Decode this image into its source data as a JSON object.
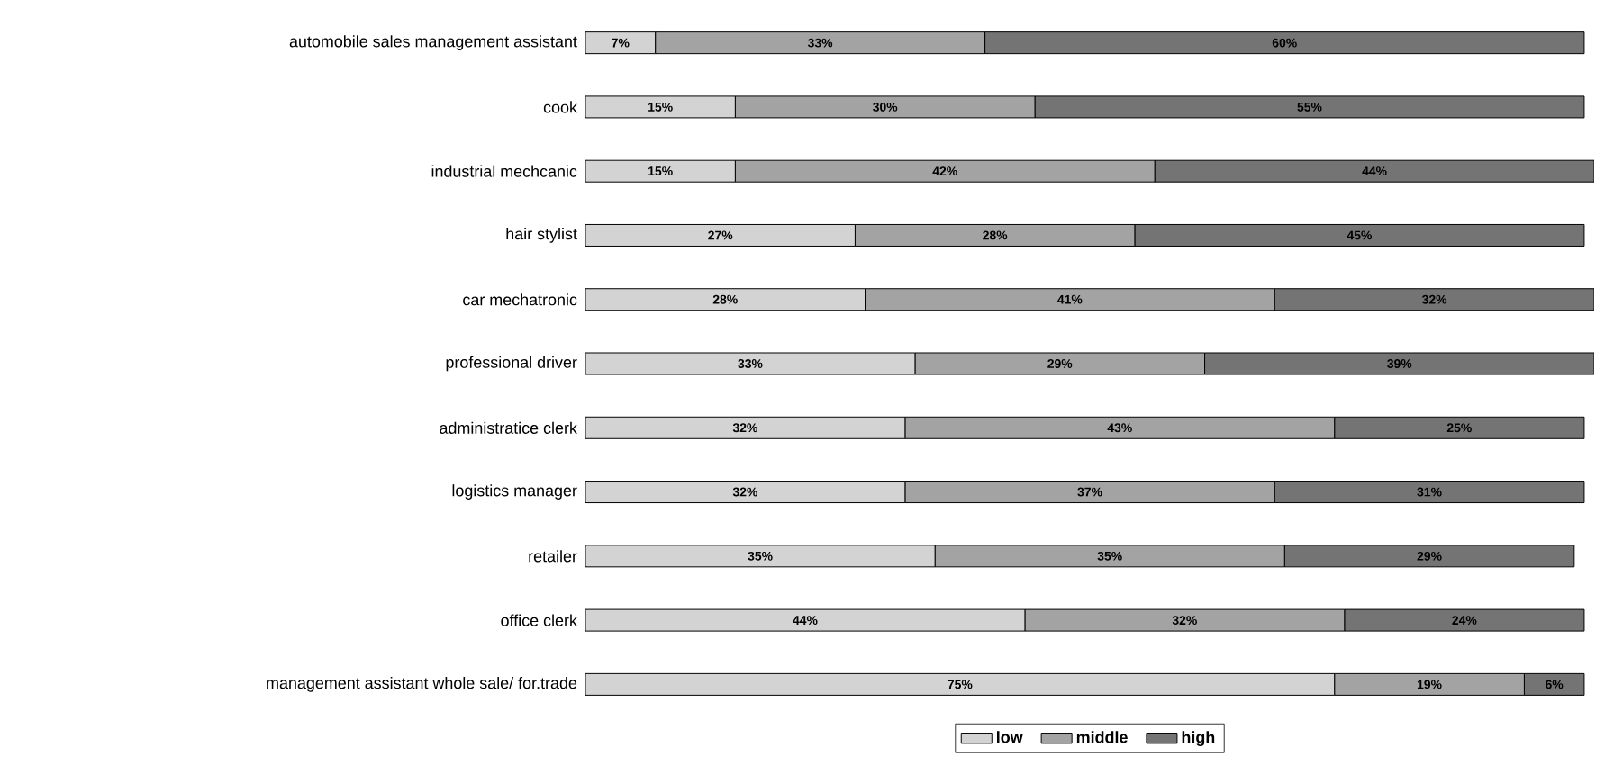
{
  "chart_data": {
    "type": "bar",
    "orientation": "horizontal",
    "stacked": true,
    "legend": "bottom",
    "categories": [
      "automobile sales management assistant",
      "cook",
      "industrial mechcanic",
      "hair stylist",
      "car mechatronic",
      "professional driver",
      "administratice clerk",
      "logistics manager",
      "retailer",
      "office clerk",
      "management assistant whole sale/ for.trade"
    ],
    "series": [
      {
        "name": "low",
        "color": "#d3d3d3",
        "values": [
          7,
          15,
          15,
          27,
          28,
          33,
          32,
          32,
          35,
          44,
          75
        ],
        "value_labels": [
          "7%",
          "15%",
          "15%",
          "27%",
          "28%",
          "33%",
          "32%",
          "32%",
          "35%",
          "44%",
          "75%"
        ]
      },
      {
        "name": "middle",
        "color": "#a3a3a3",
        "values": [
          33,
          30,
          42,
          28,
          41,
          29,
          43,
          37,
          35,
          32,
          19
        ],
        "value_labels": [
          "33%",
          "30%",
          "42%",
          "28%",
          "41%",
          "29%",
          "43%",
          "37%",
          "35%",
          "32%",
          "19%"
        ]
      },
      {
        "name": "high",
        "color": "#747474",
        "values": [
          60,
          55,
          44,
          45,
          32,
          39,
          25,
          31,
          29,
          24,
          6
        ],
        "value_labels": [
          "60%",
          "55%",
          "44%",
          "45%",
          "32%",
          "39%",
          "25%",
          "31%",
          "29%",
          "24%",
          "6%"
        ]
      }
    ]
  }
}
